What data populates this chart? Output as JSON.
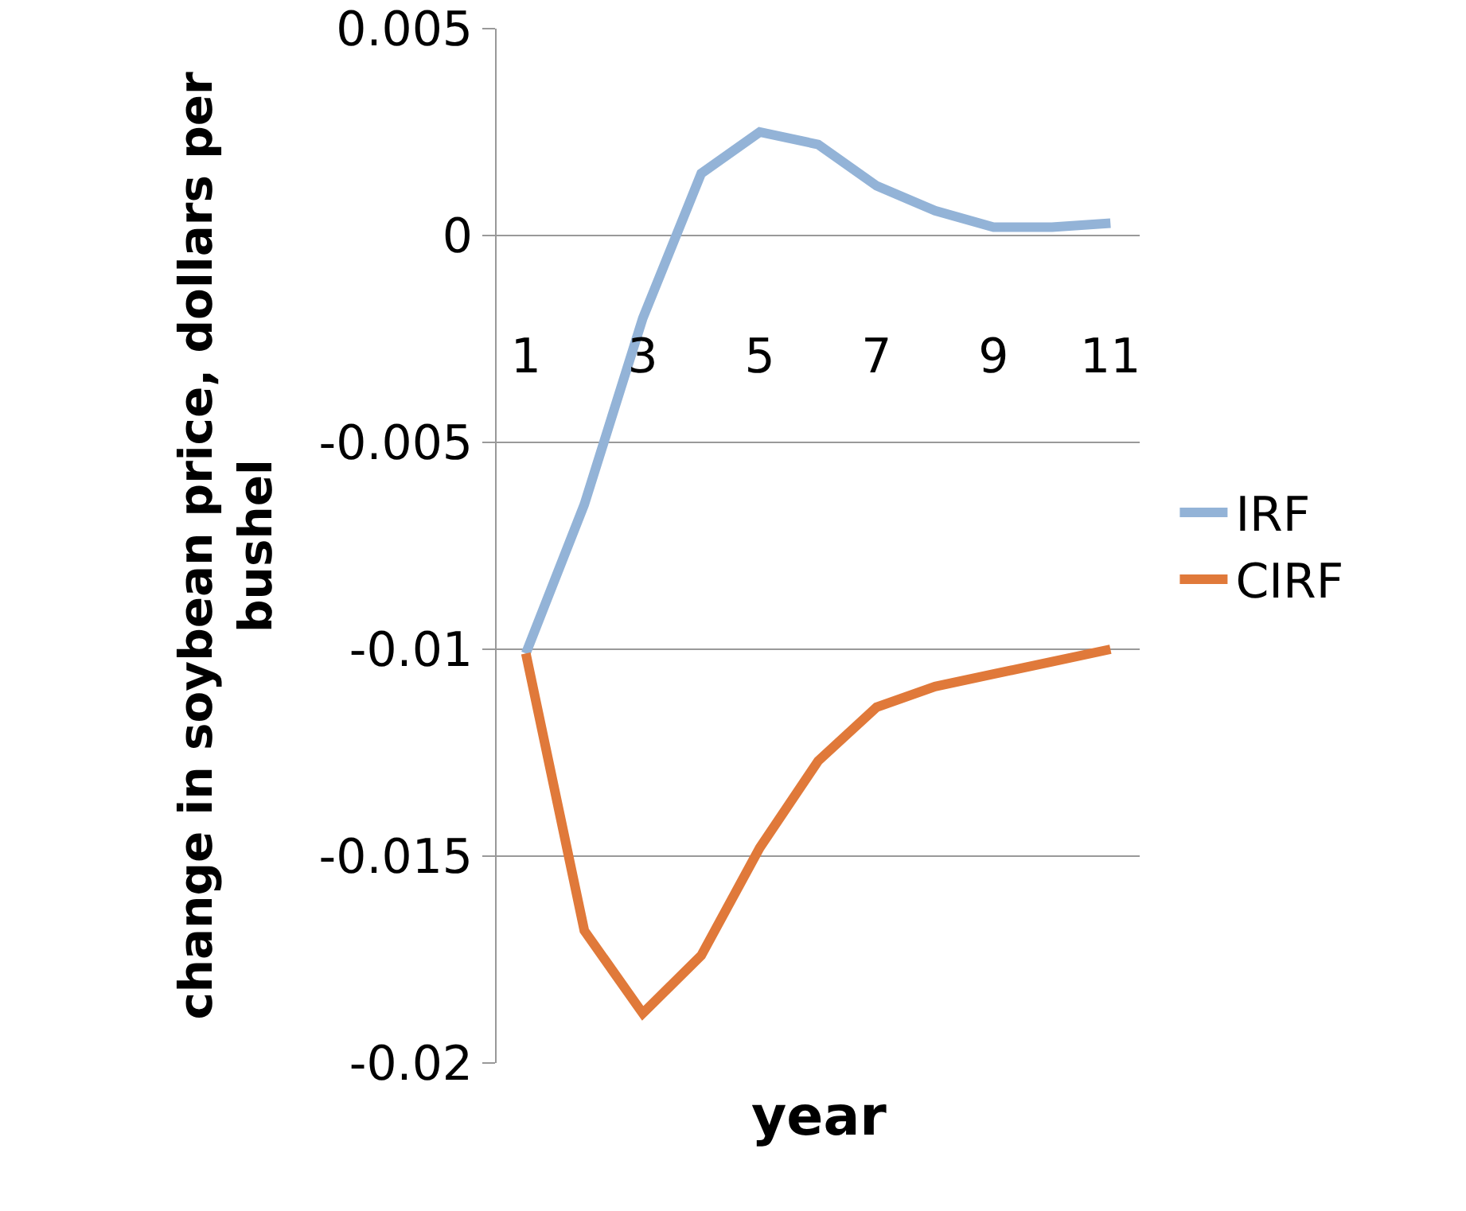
{
  "chart_data": {
    "type": "line",
    "xlabel": "year",
    "ylabel": "change in soybean price, dollars per bushel",
    "categories": [
      "1",
      null,
      "3",
      null,
      "5",
      null,
      "7",
      null,
      "9",
      null,
      "11"
    ],
    "series": [
      {
        "name": "IRF",
        "color": "#93b3d7",
        "values": [
          -0.0101,
          -0.0065,
          -0.002,
          0.0015,
          0.0025,
          0.0022,
          0.0012,
          0.0006,
          0.0002,
          0.0002,
          0.0003
        ]
      },
      {
        "name": "CIRF",
        "color": "#e0793a",
        "values": [
          -0.0101,
          -0.0168,
          -0.0188,
          -0.0174,
          -0.0148,
          -0.0127,
          -0.0114,
          -0.0109,
          -0.0106,
          -0.0103,
          -0.01
        ]
      }
    ],
    "ylim": [
      -0.02,
      0.005
    ],
    "yticks": [
      -0.02,
      -0.015,
      -0.01,
      -0.005,
      0,
      0.005
    ],
    "grid": "y",
    "legend": "right",
    "marker": "none",
    "line_style": "solid"
  }
}
